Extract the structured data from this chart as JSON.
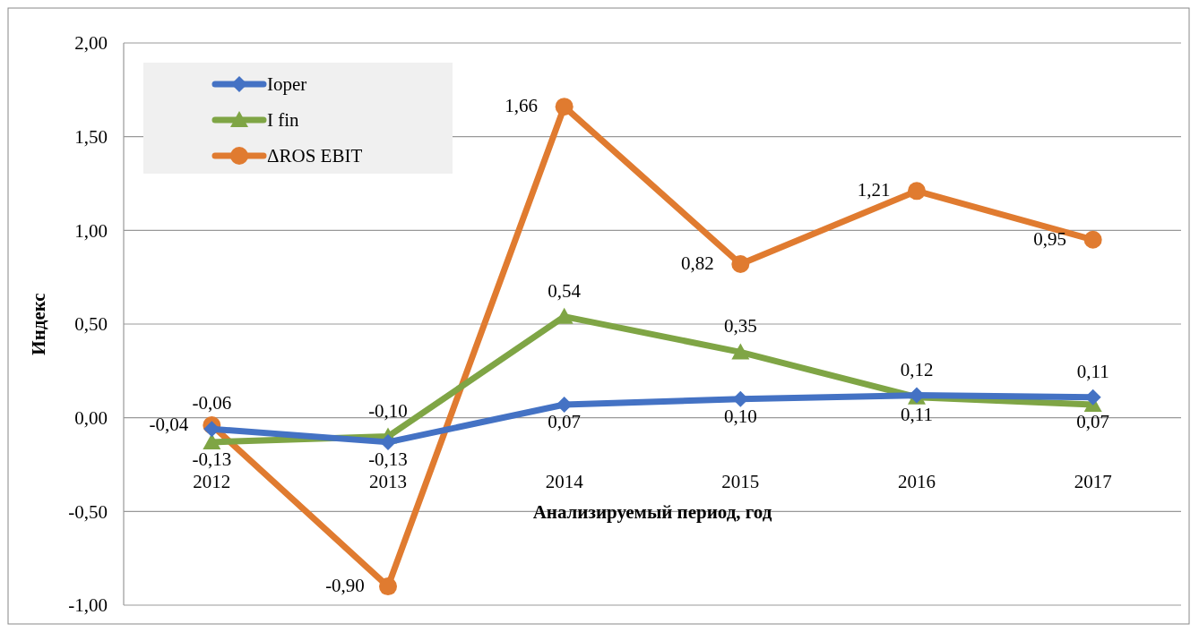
{
  "chart_data": {
    "type": "line",
    "xlabel": "Анализируемый период, год",
    "ylabel": "Индекс",
    "categories": [
      "2012",
      "2013",
      "2014",
      "2015",
      "2016",
      "2017"
    ],
    "series": [
      {
        "name": "Ioper",
        "color": "#4472c4",
        "marker": "diamond",
        "values": [
          -0.06,
          -0.13,
          0.07,
          0.1,
          0.12,
          0.11
        ],
        "value_labels": [
          "-0,06",
          "-0,13",
          "0,07",
          "0,10",
          "0,12",
          "0,11"
        ]
      },
      {
        "name": "I fin",
        "color": "#7fa545",
        "marker": "triangle",
        "values": [
          -0.13,
          -0.1,
          0.54,
          0.35,
          0.11,
          0.07
        ],
        "value_labels": [
          "-0,13",
          "-0,10",
          "0,54",
          "0,35",
          "0,11",
          "0,07"
        ]
      },
      {
        "name": "ΔROS EBIT",
        "color": "#e07b30",
        "marker": "circle",
        "values": [
          -0.04,
          -0.9,
          1.66,
          0.82,
          1.21,
          0.95
        ],
        "value_labels": [
          "-0,04",
          "-0,90",
          "1,66",
          "0,82",
          "1,21",
          "0,95"
        ]
      }
    ],
    "ylim": [
      -1,
      2
    ],
    "yticks": [
      {
        "value": -1,
        "label": "-1,00"
      },
      {
        "value": -0.5,
        "label": "-0,50"
      },
      {
        "value": 0,
        "label": "0,00"
      },
      {
        "value": 0.5,
        "label": "0,50"
      },
      {
        "value": 1,
        "label": "1,00"
      },
      {
        "value": 1.5,
        "label": "1,50"
      },
      {
        "value": 2,
        "label": "2,00"
      }
    ],
    "grid": "y",
    "legend": "top left"
  }
}
